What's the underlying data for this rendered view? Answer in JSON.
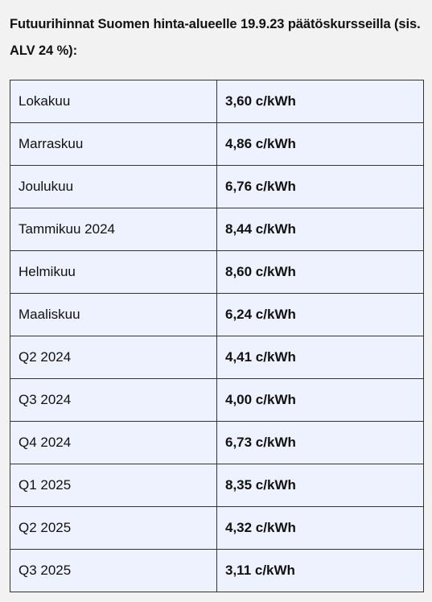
{
  "heading": "Futuurihinnat Suomen hinta-alueelle 19.9.23 päätöskursseilla (sis. ALV 24 %):",
  "rows": [
    {
      "period": "Lokakuu",
      "price": "3,60 c/kWh"
    },
    {
      "period": "Marraskuu",
      "price": "4,86 c/kWh"
    },
    {
      "period": "Joulukuu",
      "price": "6,76 c/kWh"
    },
    {
      "period": "Tammikuu 2024",
      "price": "8,44 c/kWh"
    },
    {
      "period": "Helmikuu",
      "price": "8,60 c/kWh"
    },
    {
      "period": "Maaliskuu",
      "price": "6,24 c/kWh"
    },
    {
      "period": "Q2 2024",
      "price": "4,41 c/kWh"
    },
    {
      "period": "Q3 2024",
      "price": "4,00 c/kWh"
    },
    {
      "period": "Q4 2024",
      "price": "6,73 c/kWh"
    },
    {
      "period": "Q1 2025",
      "price": "8,35 c/kWh"
    },
    {
      "period": "Q2 2025",
      "price": "4,32 c/kWh"
    },
    {
      "period": "Q3 2025",
      "price": "3,11 c/kWh"
    }
  ]
}
